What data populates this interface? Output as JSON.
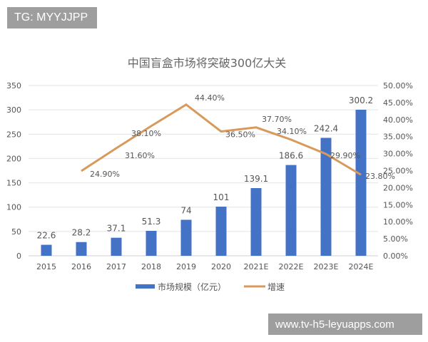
{
  "overlay": {
    "top_left": "TG: MYYJJPP",
    "bottom_right": "www.tv-h5-leyuapps.com"
  },
  "chart_data": {
    "type": "bar+line",
    "title": "中国盲盒市场将突破300亿大关",
    "categories": [
      "2015",
      "2016",
      "2017",
      "2018",
      "2019",
      "2020",
      "2021E",
      "2022E",
      "2023E",
      "2024E"
    ],
    "series": [
      {
        "name": "市场规模（亿元）",
        "type": "bar",
        "axis": "left",
        "color": "#4472c4",
        "values": [
          22.6,
          28.2,
          37.1,
          51.3,
          74,
          101,
          139.1,
          186.6,
          242.4,
          300.2
        ],
        "labels": [
          "22.6",
          "28.2",
          "37.1",
          "51.3",
          "74",
          "101",
          "139.1",
          "186.6",
          "242.4",
          "300.2"
        ]
      },
      {
        "name": "增速",
        "type": "line",
        "axis": "right",
        "color": "#d89a5c",
        "values": [
          null,
          24.9,
          31.6,
          38.1,
          44.4,
          36.5,
          37.7,
          34.1,
          29.9,
          23.8
        ],
        "labels": [
          null,
          "24.90%",
          "31.60%",
          "38.10%",
          "44.40%",
          "36.50%",
          "37.70%",
          "34.10%",
          "29.90%",
          "23.80%"
        ]
      }
    ],
    "y_left": {
      "range": [
        0,
        350
      ],
      "ticks": [
        "0",
        "50",
        "100",
        "150",
        "200",
        "250",
        "300",
        "350"
      ]
    },
    "y_right": {
      "range": [
        0,
        50
      ],
      "ticks": [
        "0.00%",
        "5.00%",
        "10.00%",
        "15.00%",
        "20.00%",
        "25.00%",
        "30.00%",
        "35.00%",
        "40.00%",
        "45.00%",
        "50.00%"
      ]
    },
    "grid": true,
    "legend": "bottom"
  }
}
